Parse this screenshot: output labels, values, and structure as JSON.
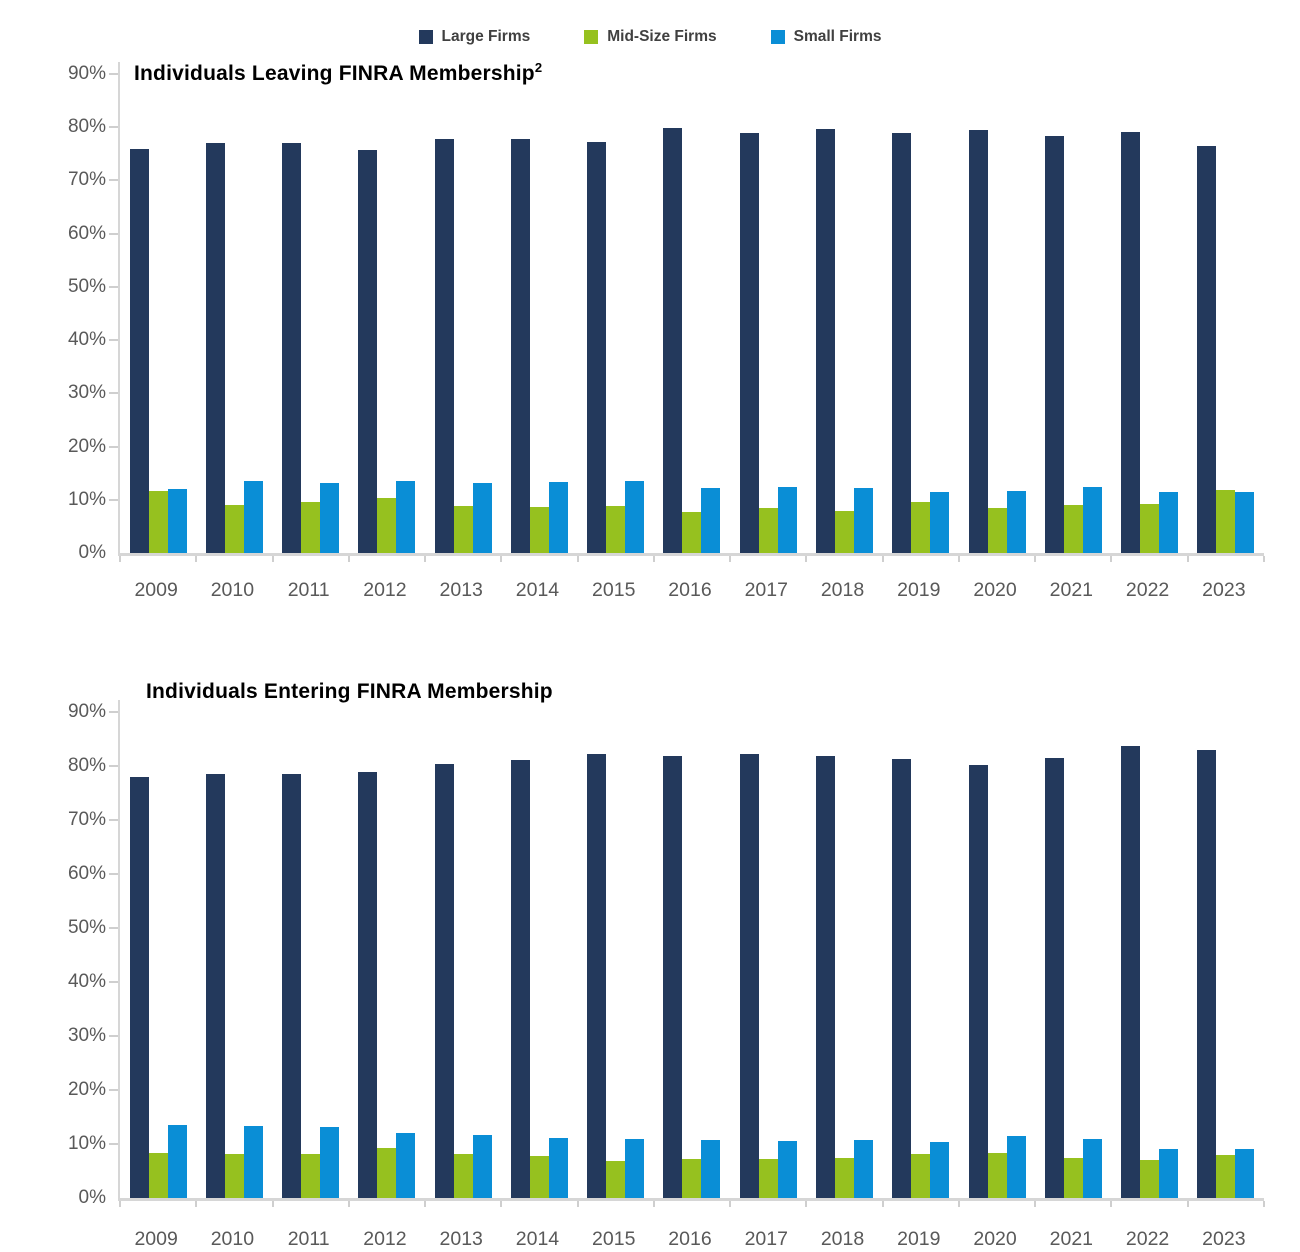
{
  "page": {
    "background": "#ffffff"
  },
  "legend": {
    "position": "top-center",
    "items": [
      {
        "label": "Large Firms",
        "color": "#23395c"
      },
      {
        "label": "Mid-Size Firms",
        "color": "#96c11f"
      },
      {
        "label": "Small Firms",
        "color": "#0a8ed6"
      }
    ]
  },
  "colors": {
    "axis_line": "#d6d6d6",
    "tick_mark": "#cfcfcf",
    "axis_text": "#595959",
    "title_text": "#000000",
    "legend_text": "#404040"
  },
  "chart_data": [
    {
      "type": "bar",
      "title": "Individuals Leaving FINRA Membership",
      "title_superscript": "2",
      "value_unit": "percent",
      "grid": false,
      "legend_position": "top-center",
      "ylim": [
        0,
        90
      ],
      "y_ticks": [
        "0%",
        "10%",
        "20%",
        "30%",
        "40%",
        "50%",
        "60%",
        "70%",
        "80%",
        "90%"
      ],
      "categories": [
        "2009",
        "2010",
        "2011",
        "2012",
        "2013",
        "2014",
        "2015",
        "2016",
        "2017",
        "2018",
        "2019",
        "2020",
        "2021",
        "2022",
        "2023"
      ],
      "series": [
        {
          "name": "Large Firms",
          "color": "#23395c",
          "values": [
            76.0,
            77.0,
            77.1,
            75.8,
            77.7,
            77.7,
            77.3,
            79.8,
            78.9,
            79.6,
            78.9,
            79.4,
            78.3,
            79.1,
            76.4
          ]
        },
        {
          "name": "Mid-Size Firms",
          "color": "#96c11f",
          "values": [
            11.7,
            9.1,
            9.5,
            10.3,
            8.9,
            8.7,
            8.9,
            7.7,
            8.4,
            7.9,
            9.5,
            8.5,
            9.0,
            9.2,
            11.8
          ]
        },
        {
          "name": "Small Firms",
          "color": "#0a8ed6",
          "values": [
            12.1,
            13.5,
            13.2,
            13.5,
            13.2,
            13.4,
            13.5,
            12.2,
            12.4,
            12.2,
            11.5,
            11.7,
            12.4,
            11.5,
            11.4
          ]
        }
      ]
    },
    {
      "type": "bar",
      "title": "Individuals Entering FINRA Membership",
      "value_unit": "percent",
      "grid": false,
      "legend_position": "top-center",
      "ylim": [
        0,
        90
      ],
      "y_ticks": [
        "0%",
        "10%",
        "20%",
        "30%",
        "40%",
        "50%",
        "60%",
        "70%",
        "80%",
        "90%"
      ],
      "categories": [
        "2009",
        "2010",
        "2011",
        "2012",
        "2013",
        "2014",
        "2015",
        "2016",
        "2017",
        "2018",
        "2019",
        "2020",
        "2021",
        "2022",
        "2023"
      ],
      "series": [
        {
          "name": "Large Firms",
          "color": "#23395c",
          "values": [
            78.0,
            78.6,
            78.6,
            78.8,
            80.4,
            81.1,
            82.2,
            81.9,
            82.2,
            81.9,
            81.3,
            80.2,
            81.5,
            83.7,
            83.0
          ]
        },
        {
          "name": "Mid-Size Firms",
          "color": "#96c11f",
          "values": [
            8.4,
            8.2,
            8.2,
            9.2,
            8.1,
            7.7,
            6.8,
            7.3,
            7.2,
            7.4,
            8.1,
            8.4,
            7.5,
            7.1,
            7.9
          ]
        },
        {
          "name": "Small Firms",
          "color": "#0a8ed6",
          "values": [
            13.5,
            13.3,
            13.2,
            12.1,
            11.6,
            11.1,
            10.9,
            10.8,
            10.6,
            10.8,
            10.3,
            11.5,
            10.9,
            9.0,
            9.1
          ]
        }
      ]
    }
  ]
}
